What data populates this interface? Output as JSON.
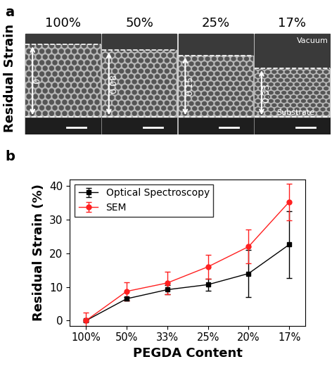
{
  "panel_a": {
    "label": "a",
    "side_label": "Residual Strain",
    "columns": [
      "100%",
      "50%",
      "25%",
      "17%"
    ],
    "strains": [
      0,
      0.08,
      0.15,
      0.33
    ],
    "top_note": "Vacuum",
    "bottom_note": "Substrate"
  },
  "panel_b_label": "b",
  "chart_data": {
    "type": "line",
    "x_label": "PEGDA Content",
    "y_label": "Residual Strain (%)",
    "categories": [
      "100%",
      "50%",
      "33%",
      "25%",
      "20%",
      "17%"
    ],
    "series": [
      {
        "name": "Optical Spectroscopy",
        "color": "#000000",
        "marker": "square",
        "values": [
          0,
          6.5,
          9.2,
          10.7,
          14.0,
          22.6
        ],
        "errors": [
          0.3,
          0.5,
          1.3,
          1.8,
          7.0,
          10.0
        ]
      },
      {
        "name": "SEM",
        "color": "#ff2020",
        "marker": "circle",
        "values": [
          0,
          8.7,
          11.2,
          16.0,
          22.0,
          35.3
        ],
        "errors": [
          2.3,
          2.8,
          3.3,
          3.6,
          5.0,
          5.5
        ]
      }
    ],
    "ylim": [
      -1.5,
      42
    ],
    "yticks": [
      0,
      10,
      20,
      30,
      40
    ],
    "legend": "upper left",
    "grid": false
  }
}
